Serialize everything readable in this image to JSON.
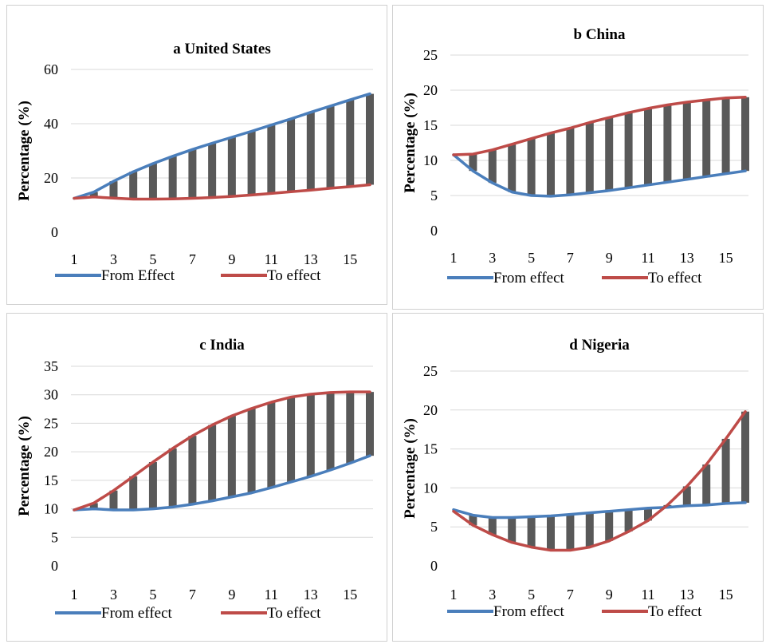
{
  "chart_data": [
    {
      "type": "line",
      "panel": "a",
      "title": "a United States",
      "ylabel": "Percentage (%)",
      "xlabel": "",
      "x": [
        1,
        2,
        3,
        4,
        5,
        6,
        7,
        8,
        9,
        10,
        11,
        12,
        13,
        14,
        15,
        16
      ],
      "xticks": [
        "1",
        "3",
        "5",
        "7",
        "9",
        "11",
        "13",
        "15"
      ],
      "yticks": [
        "0",
        "20",
        "40",
        "60"
      ],
      "ylim": [
        0,
        60
      ],
      "series": [
        {
          "name": "From Effect",
          "color": "#4a7ebb",
          "values": [
            12.5,
            14.8,
            18.8,
            22.3,
            25.3,
            28.0,
            30.5,
            32.8,
            35.0,
            37.2,
            39.5,
            41.8,
            44.2,
            46.5,
            48.8,
            51.0
          ]
        },
        {
          "name": "To effect",
          "color": "#be4b48",
          "values": [
            12.5,
            13.0,
            12.6,
            12.2,
            12.2,
            12.3,
            12.5,
            12.8,
            13.2,
            13.7,
            14.3,
            14.9,
            15.5,
            16.2,
            16.8,
            17.5
          ]
        }
      ],
      "bar_color": "#595959",
      "legend": [
        "From Effect",
        "To effect"
      ],
      "legend_position": "bottom"
    },
    {
      "type": "line",
      "panel": "b",
      "title": "b China",
      "ylabel": "Percentage (%)",
      "xlabel": "",
      "x": [
        1,
        2,
        3,
        4,
        5,
        6,
        7,
        8,
        9,
        10,
        11,
        12,
        13,
        14,
        15,
        16
      ],
      "xticks": [
        "1",
        "3",
        "5",
        "7",
        "9",
        "11",
        "13",
        "15"
      ],
      "yticks": [
        "0",
        "5",
        "10",
        "15",
        "20",
        "25"
      ],
      "ylim": [
        0,
        25
      ],
      "series": [
        {
          "name": "From effect",
          "color": "#4a7ebb",
          "values": [
            10.8,
            8.5,
            6.8,
            5.5,
            5.0,
            4.9,
            5.1,
            5.4,
            5.7,
            6.1,
            6.5,
            6.9,
            7.3,
            7.7,
            8.1,
            8.5
          ]
        },
        {
          "name": "To effect",
          "color": "#be4b48",
          "values": [
            10.8,
            10.9,
            11.5,
            12.3,
            13.1,
            13.9,
            14.6,
            15.4,
            16.1,
            16.8,
            17.4,
            17.9,
            18.3,
            18.6,
            18.9,
            19.0
          ]
        }
      ],
      "bar_color": "#595959",
      "legend": [
        "From effect",
        "To effect"
      ],
      "legend_position": "bottom"
    },
    {
      "type": "line",
      "panel": "c",
      "title": "c India",
      "ylabel": "Percentage (%)",
      "xlabel": "",
      "x": [
        1,
        2,
        3,
        4,
        5,
        6,
        7,
        8,
        9,
        10,
        11,
        12,
        13,
        14,
        15,
        16
      ],
      "xticks": [
        "1",
        "3",
        "5",
        "7",
        "9",
        "11",
        "13",
        "15"
      ],
      "yticks": [
        "0",
        "5",
        "10",
        "15",
        "20",
        "25",
        "30",
        "35"
      ],
      "ylim": [
        0,
        35
      ],
      "series": [
        {
          "name": "From effect",
          "color": "#4a7ebb",
          "values": [
            9.8,
            10.0,
            9.8,
            9.8,
            10.0,
            10.3,
            10.8,
            11.4,
            12.1,
            12.8,
            13.7,
            14.7,
            15.7,
            16.8,
            18.0,
            19.3
          ]
        },
        {
          "name": "To effect",
          "color": "#be4b48",
          "values": [
            9.8,
            11.0,
            13.2,
            15.7,
            18.2,
            20.6,
            22.8,
            24.7,
            26.3,
            27.6,
            28.7,
            29.6,
            30.1,
            30.4,
            30.5,
            30.5
          ]
        }
      ],
      "bar_color": "#595959",
      "legend": [
        "From effect",
        "To effect"
      ],
      "legend_position": "bottom"
    },
    {
      "type": "line",
      "panel": "d",
      "title": "d Nigeria",
      "ylabel": "Percentage (%)",
      "xlabel": "",
      "x": [
        1,
        2,
        3,
        4,
        5,
        6,
        7,
        8,
        9,
        10,
        11,
        12,
        13,
        14,
        15,
        16
      ],
      "xticks": [
        "1",
        "3",
        "5",
        "7",
        "9",
        "11",
        "13",
        "15"
      ],
      "yticks": [
        "0",
        "5",
        "10",
        "15",
        "20",
        "25"
      ],
      "ylim": [
        0,
        25
      ],
      "series": [
        {
          "name": "From effect",
          "color": "#4a7ebb",
          "values": [
            7.2,
            6.5,
            6.2,
            6.2,
            6.3,
            6.4,
            6.6,
            6.8,
            7.0,
            7.2,
            7.4,
            7.5,
            7.7,
            7.8,
            8.0,
            8.1
          ]
        },
        {
          "name": "To effect",
          "color": "#be4b48",
          "values": [
            7.0,
            5.2,
            4.0,
            3.0,
            2.4,
            2.0,
            2.0,
            2.4,
            3.2,
            4.4,
            5.8,
            7.8,
            10.2,
            13.0,
            16.3,
            19.8
          ]
        }
      ],
      "bar_color": "#595959",
      "legend": [
        "From effect",
        "To effect"
      ],
      "legend_position": "bottom"
    }
  ]
}
